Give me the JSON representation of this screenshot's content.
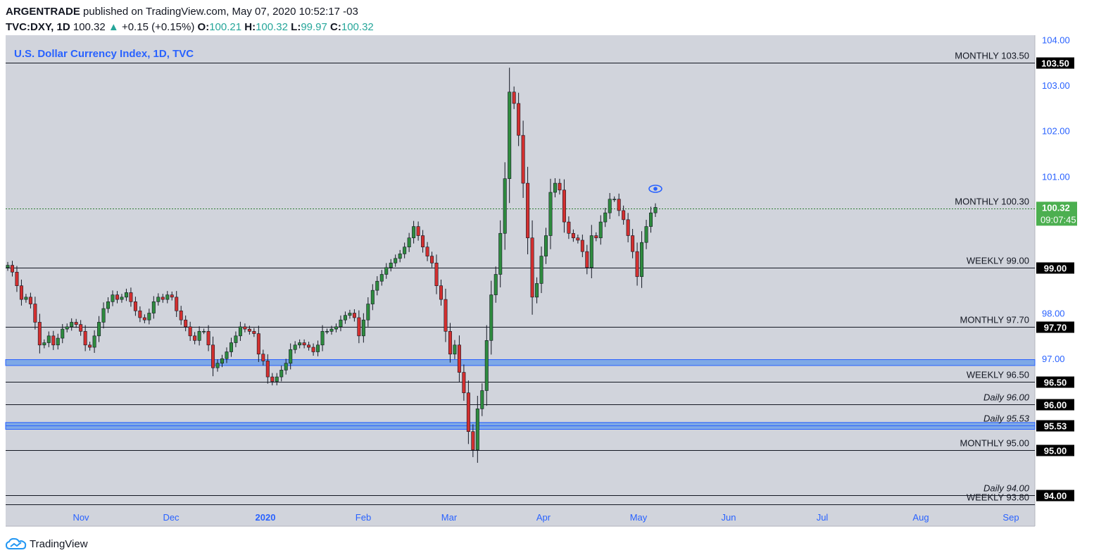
{
  "header": {
    "author": "ARGENTRADE",
    "published_text": "published on TradingView.com, May 07, 2020 10:52:17 -03",
    "symbol": "TVC:DXY, 1D",
    "last": "100.32",
    "change": "+0.15 (+0.15%)",
    "o_label": "O:",
    "o_value": "100.21",
    "h_label": "H:",
    "h_value": "100.32",
    "l_label": "L:",
    "l_value": "99.97",
    "c_label": "C:",
    "c_value": "100.32"
  },
  "footer": {
    "brand": "TradingView"
  },
  "colors": {
    "plot_bg": "#d1d4dc",
    "up": "#2e8b3e",
    "down": "#d32f2f",
    "axis_text": "#2962ff",
    "zone": "#7ea8e6",
    "price_label": "#4caf50"
  },
  "chart_data": {
    "type": "candlestick",
    "title": "U.S. Dollar Currency Index, 1D, TVC",
    "ylim": [
      93.8,
      104.0
    ],
    "y_ticks": [
      "104.00",
      "103.00",
      "102.00",
      "101.00",
      "100.32",
      "98.00",
      "97.00"
    ],
    "x_ticks": [
      "Nov",
      "Dec",
      "2020",
      "Feb",
      "Mar",
      "Apr",
      "May",
      "Jun",
      "Jul",
      "Aug",
      "Sep"
    ],
    "levels": [
      {
        "name": "MONTHLY 103.50",
        "value": 103.5,
        "label": "103.50",
        "style": "solid"
      },
      {
        "name": "MONTHLY 100.30",
        "value": 100.3,
        "label": "100.30",
        "style": "dotted-green"
      },
      {
        "name": "WEEKLY 99.00",
        "value": 99.0,
        "label": "99.00",
        "style": "solid"
      },
      {
        "name": "MONTHLY 97.70",
        "value": 97.7,
        "label": "97.70",
        "style": "solid"
      },
      {
        "name": "WEEKLY 96.50",
        "value": 96.5,
        "label": "96.50",
        "style": "solid"
      },
      {
        "name": "Daily 96.00",
        "value": 96.0,
        "label": "96.00",
        "style": "solid"
      },
      {
        "name": "Daily 95.53",
        "value": 95.53,
        "label": "95.53",
        "style": "blue"
      },
      {
        "name": "MONTHLY 95.00",
        "value": 95.0,
        "label": "95.00",
        "style": "solid"
      },
      {
        "name": "Daily 94.00",
        "value": 94.0,
        "label": "94.00",
        "style": "solid"
      },
      {
        "name": "WEEKLY 93.80",
        "value": 93.8,
        "label": "",
        "style": "solid"
      }
    ],
    "zones": [
      {
        "from": 96.85,
        "to": 96.98
      },
      {
        "from": 95.45,
        "to": 95.6
      }
    ],
    "current_price": {
      "value": 100.32,
      "label": "100.32",
      "countdown": "09:07:45"
    },
    "closes": [
      99.05,
      98.9,
      98.6,
      98.3,
      98.35,
      98.2,
      97.8,
      97.3,
      97.35,
      97.5,
      97.3,
      97.45,
      97.65,
      97.7,
      97.8,
      97.75,
      97.6,
      97.3,
      97.25,
      97.5,
      97.8,
      98.1,
      98.25,
      98.4,
      98.3,
      98.35,
      98.45,
      98.25,
      98.05,
      97.9,
      97.85,
      98.0,
      98.25,
      98.35,
      98.3,
      98.4,
      98.35,
      98.05,
      97.85,
      97.7,
      97.5,
      97.4,
      97.6,
      97.6,
      97.3,
      96.8,
      96.9,
      97.0,
      97.15,
      97.35,
      97.5,
      97.7,
      97.65,
      97.6,
      97.55,
      97.1,
      96.95,
      96.6,
      96.5,
      96.6,
      96.75,
      96.9,
      97.2,
      97.3,
      97.35,
      97.3,
      97.25,
      97.15,
      97.3,
      97.6,
      97.6,
      97.65,
      97.7,
      97.85,
      97.95,
      98.0,
      97.9,
      97.5,
      97.85,
      98.2,
      98.5,
      98.7,
      98.85,
      99.0,
      99.1,
      99.2,
      99.3,
      99.45,
      99.65,
      99.9,
      99.7,
      99.45,
      99.25,
      99.1,
      98.6,
      98.3,
      97.6,
      97.1,
      97.3,
      96.7,
      96.25,
      95.4,
      95.0,
      95.9,
      96.3,
      97.4,
      98.4,
      98.85,
      99.75,
      100.95,
      102.85,
      102.6,
      101.9,
      100.85,
      99.65,
      98.35,
      98.65,
      99.25,
      99.7,
      100.65,
      100.85,
      100.7,
      100.0,
      99.75,
      99.65,
      99.6,
      99.35,
      99.0,
      99.7,
      99.65,
      100.0,
      100.2,
      100.5,
      100.5,
      100.25,
      100.05,
      99.7,
      99.35,
      98.8,
      99.55,
      99.9,
      100.2,
      100.32
    ]
  }
}
